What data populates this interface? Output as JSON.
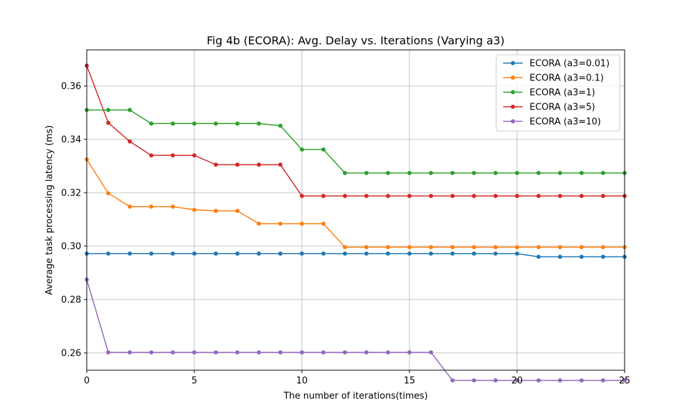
{
  "chart_data": {
    "type": "line",
    "title": "Fig 4b (ECORA): Avg. Delay vs. Iterations (Varying a3)",
    "xlabel": "The number of iterations(times)",
    "ylabel": "Average task processing latency (ms)",
    "xlim": [
      0,
      25
    ],
    "ylim": [
      0.2535,
      0.3735
    ],
    "xticks": [
      0,
      5,
      10,
      15,
      20,
      25
    ],
    "yticks": [
      0.26,
      0.28,
      0.3,
      0.32,
      0.34,
      0.36
    ],
    "ytick_labels": [
      "0.26",
      "0.28",
      "0.30",
      "0.32",
      "0.34",
      "0.36"
    ],
    "grid": true,
    "legend_position": "top-right",
    "x": [
      0,
      1,
      2,
      3,
      4,
      5,
      6,
      7,
      8,
      9,
      10,
      11,
      12,
      13,
      14,
      15,
      16,
      17,
      18,
      19,
      20,
      21,
      22,
      23,
      24,
      25
    ],
    "series": [
      {
        "name": "ECORA (a3=0.01)",
        "color": "#1f77b4",
        "values": [
          0.2972,
          0.2972,
          0.2972,
          0.2972,
          0.2972,
          0.2972,
          0.2972,
          0.2972,
          0.2972,
          0.2972,
          0.2972,
          0.2972,
          0.2972,
          0.2972,
          0.2972,
          0.2972,
          0.2972,
          0.2972,
          0.2972,
          0.2972,
          0.2972,
          0.296,
          0.296,
          0.296,
          0.296,
          0.296
        ]
      },
      {
        "name": "ECORA (a3=0.1)",
        "color": "#ff7f0e",
        "values": [
          0.3325,
          0.3198,
          0.3148,
          0.3148,
          0.3148,
          0.3136,
          0.3132,
          0.3132,
          0.3084,
          0.3084,
          0.3084,
          0.3084,
          0.2996,
          0.2996,
          0.2996,
          0.2996,
          0.2996,
          0.2996,
          0.2996,
          0.2996,
          0.2996,
          0.2996,
          0.2996,
          0.2996,
          0.2996,
          0.2996
        ]
      },
      {
        "name": "ECORA (a3=1)",
        "color": "#2ca02c",
        "values": [
          0.351,
          0.351,
          0.351,
          0.3459,
          0.3459,
          0.3459,
          0.3459,
          0.3459,
          0.3459,
          0.3451,
          0.3362,
          0.3362,
          0.3274,
          0.3274,
          0.3274,
          0.3274,
          0.3274,
          0.3274,
          0.3274,
          0.3274,
          0.3274,
          0.3274,
          0.3274,
          0.3274,
          0.3274,
          0.3274
        ]
      },
      {
        "name": "ECORA (a3=5)",
        "color": "#d62728",
        "values": [
          0.3676,
          0.3462,
          0.3392,
          0.334,
          0.334,
          0.334,
          0.3305,
          0.3305,
          0.3305,
          0.3305,
          0.3188,
          0.3188,
          0.3188,
          0.3188,
          0.3188,
          0.3188,
          0.3188,
          0.3188,
          0.3188,
          0.3188,
          0.3188,
          0.3188,
          0.3188,
          0.3188,
          0.3188,
          0.3188
        ]
      },
      {
        "name": "ECORA (a3=10)",
        "color": "#9467bd",
        "values": [
          0.2875,
          0.2602,
          0.2602,
          0.2602,
          0.2602,
          0.2602,
          0.2602,
          0.2602,
          0.2602,
          0.2602,
          0.2602,
          0.2602,
          0.2602,
          0.2602,
          0.2602,
          0.2602,
          0.2602,
          0.2497,
          0.2497,
          0.2497,
          0.2497,
          0.2497,
          0.2497,
          0.2497,
          0.2497,
          0.2497
        ]
      }
    ]
  }
}
